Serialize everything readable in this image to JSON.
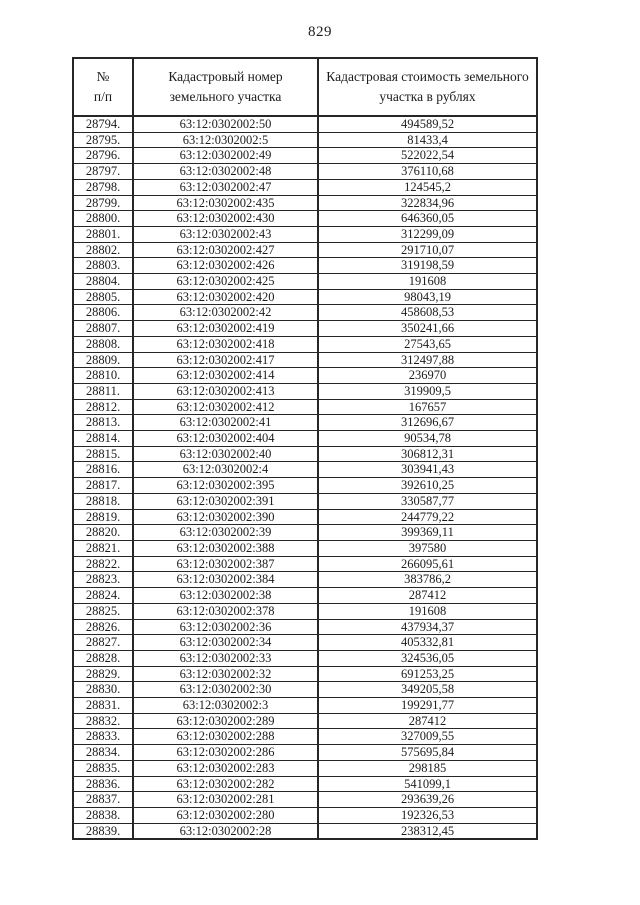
{
  "page": {
    "number": "829"
  },
  "table": {
    "headers": [
      "№\nп/п",
      "Кадастровый номер\nземельного участка",
      "Кадастровая стоимость земельного\nучастка в рублях"
    ],
    "rows": [
      [
        "28794.",
        "63:12:0302002:50",
        "494589,52"
      ],
      [
        "28795.",
        "63:12:0302002:5",
        "81433,4"
      ],
      [
        "28796.",
        "63:12:0302002:49",
        "522022,54"
      ],
      [
        "28797.",
        "63:12:0302002:48",
        "376110,68"
      ],
      [
        "28798.",
        "63:12:0302002:47",
        "124545,2"
      ],
      [
        "28799.",
        "63:12:0302002:435",
        "322834,96"
      ],
      [
        "28800.",
        "63:12:0302002:430",
        "646360,05"
      ],
      [
        "28801.",
        "63:12:0302002:43",
        "312299,09"
      ],
      [
        "28802.",
        "63:12:0302002:427",
        "291710,07"
      ],
      [
        "28803.",
        "63:12:0302002:426",
        "319198,59"
      ],
      [
        "28804.",
        "63:12:0302002:425",
        "191608"
      ],
      [
        "28805.",
        "63:12:0302002:420",
        "98043,19"
      ],
      [
        "28806.",
        "63:12:0302002:42",
        "458608,53"
      ],
      [
        "28807.",
        "63:12:0302002:419",
        "350241,66"
      ],
      [
        "28808.",
        "63:12:0302002:418",
        "27543,65"
      ],
      [
        "28809.",
        "63:12:0302002:417",
        "312497,88"
      ],
      [
        "28810.",
        "63:12:0302002:414",
        "236970"
      ],
      [
        "28811.",
        "63:12:0302002:413",
        "319909,5"
      ],
      [
        "28812.",
        "63:12:0302002:412",
        "167657"
      ],
      [
        "28813.",
        "63:12:0302002:41",
        "312696,67"
      ],
      [
        "28814.",
        "63:12:0302002:404",
        "90534,78"
      ],
      [
        "28815.",
        "63:12:0302002:40",
        "306812,31"
      ],
      [
        "28816.",
        "63:12:0302002:4",
        "303941,43"
      ],
      [
        "28817.",
        "63:12:0302002:395",
        "392610,25"
      ],
      [
        "28818.",
        "63:12:0302002:391",
        "330587,77"
      ],
      [
        "28819.",
        "63:12:0302002:390",
        "244779,22"
      ],
      [
        "28820.",
        "63:12:0302002:39",
        "399369,11"
      ],
      [
        "28821.",
        "63:12:0302002:388",
        "397580"
      ],
      [
        "28822.",
        "63:12:0302002:387",
        "266095,61"
      ],
      [
        "28823.",
        "63:12:0302002:384",
        "383786,2"
      ],
      [
        "28824.",
        "63:12:0302002:38",
        "287412"
      ],
      [
        "28825.",
        "63:12:0302002:378",
        "191608"
      ],
      [
        "28826.",
        "63:12:0302002:36",
        "437934,37"
      ],
      [
        "28827.",
        "63:12:0302002:34",
        "405332,81"
      ],
      [
        "28828.",
        "63:12:0302002:33",
        "324536,05"
      ],
      [
        "28829.",
        "63:12:0302002:32",
        "691253,25"
      ],
      [
        "28830.",
        "63:12:0302002:30",
        "349205,58"
      ],
      [
        "28831.",
        "63:12:0302002:3",
        "199291,77"
      ],
      [
        "28832.",
        "63:12:0302002:289",
        "287412"
      ],
      [
        "28833.",
        "63:12:0302002:288",
        "327009,55"
      ],
      [
        "28834.",
        "63:12:0302002:286",
        "575695,84"
      ],
      [
        "28835.",
        "63:12:0302002:283",
        "298185"
      ],
      [
        "28836.",
        "63:12:0302002:282",
        "541099,1"
      ],
      [
        "28837.",
        "63:12:0302002:281",
        "293639,26"
      ],
      [
        "28838.",
        "63:12:0302002:280",
        "192326,53"
      ],
      [
        "28839.",
        "63:12:0302002:28",
        "238312,45"
      ]
    ]
  }
}
